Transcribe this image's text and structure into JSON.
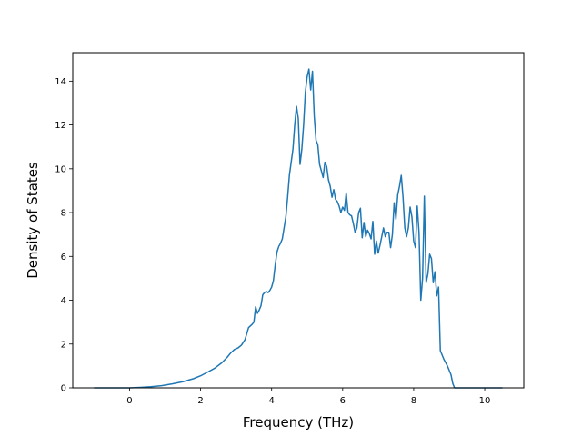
{
  "chart_data": {
    "type": "line",
    "xlabel": "Frequency (THz)",
    "ylabel": "Density of States",
    "xlim": [
      -1.6,
      11.1
    ],
    "ylim": [
      0,
      15.3
    ],
    "xticks": [
      0,
      2,
      4,
      6,
      8,
      10
    ],
    "yticks": [
      0,
      2,
      4,
      6,
      8,
      10,
      12,
      14
    ],
    "grid": false,
    "series": [
      {
        "color": "#1f77b4",
        "points": [
          [
            -1.0,
            0.0
          ],
          [
            -0.5,
            0.0
          ],
          [
            0.0,
            0.0
          ],
          [
            0.3,
            0.02
          ],
          [
            0.6,
            0.05
          ],
          [
            0.9,
            0.1
          ],
          [
            1.2,
            0.18
          ],
          [
            1.5,
            0.28
          ],
          [
            1.8,
            0.42
          ],
          [
            2.0,
            0.55
          ],
          [
            2.2,
            0.72
          ],
          [
            2.4,
            0.9
          ],
          [
            2.6,
            1.15
          ],
          [
            2.75,
            1.4
          ],
          [
            2.85,
            1.6
          ],
          [
            2.95,
            1.75
          ],
          [
            3.05,
            1.82
          ],
          [
            3.15,
            1.95
          ],
          [
            3.25,
            2.2
          ],
          [
            3.35,
            2.75
          ],
          [
            3.45,
            2.9
          ],
          [
            3.5,
            3.0
          ],
          [
            3.55,
            3.7
          ],
          [
            3.6,
            3.4
          ],
          [
            3.65,
            3.55
          ],
          [
            3.7,
            3.75
          ],
          [
            3.75,
            4.25
          ],
          [
            3.8,
            4.35
          ],
          [
            3.85,
            4.4
          ],
          [
            3.9,
            4.35
          ],
          [
            3.95,
            4.45
          ],
          [
            4.0,
            4.6
          ],
          [
            4.05,
            4.9
          ],
          [
            4.1,
            5.6
          ],
          [
            4.15,
            6.2
          ],
          [
            4.2,
            6.45
          ],
          [
            4.25,
            6.6
          ],
          [
            4.3,
            6.8
          ],
          [
            4.35,
            7.3
          ],
          [
            4.4,
            7.8
          ],
          [
            4.45,
            8.7
          ],
          [
            4.5,
            9.7
          ],
          [
            4.55,
            10.3
          ],
          [
            4.6,
            10.9
          ],
          [
            4.65,
            12.0
          ],
          [
            4.7,
            12.85
          ],
          [
            4.75,
            12.3
          ],
          [
            4.8,
            10.2
          ],
          [
            4.85,
            10.9
          ],
          [
            4.9,
            12.0
          ],
          [
            4.95,
            13.5
          ],
          [
            5.0,
            14.2
          ],
          [
            5.05,
            14.55
          ],
          [
            5.1,
            13.6
          ],
          [
            5.15,
            14.45
          ],
          [
            5.2,
            12.4
          ],
          [
            5.25,
            11.3
          ],
          [
            5.3,
            11.1
          ],
          [
            5.35,
            10.2
          ],
          [
            5.4,
            9.9
          ],
          [
            5.45,
            9.6
          ],
          [
            5.5,
            10.3
          ],
          [
            5.55,
            10.1
          ],
          [
            5.6,
            9.5
          ],
          [
            5.65,
            9.2
          ],
          [
            5.7,
            8.7
          ],
          [
            5.75,
            9.05
          ],
          [
            5.8,
            8.6
          ],
          [
            5.85,
            8.5
          ],
          [
            5.9,
            8.3
          ],
          [
            5.95,
            8.0
          ],
          [
            6.0,
            8.25
          ],
          [
            6.05,
            8.1
          ],
          [
            6.1,
            8.9
          ],
          [
            6.15,
            8.0
          ],
          [
            6.2,
            7.9
          ],
          [
            6.25,
            7.85
          ],
          [
            6.3,
            7.5
          ],
          [
            6.35,
            7.1
          ],
          [
            6.4,
            7.3
          ],
          [
            6.45,
            8.0
          ],
          [
            6.5,
            8.2
          ],
          [
            6.55,
            6.85
          ],
          [
            6.6,
            7.55
          ],
          [
            6.65,
            6.9
          ],
          [
            6.7,
            7.2
          ],
          [
            6.75,
            7.05
          ],
          [
            6.8,
            6.8
          ],
          [
            6.85,
            7.6
          ],
          [
            6.9,
            6.1
          ],
          [
            6.95,
            6.7
          ],
          [
            7.0,
            6.15
          ],
          [
            7.05,
            6.5
          ],
          [
            7.1,
            6.9
          ],
          [
            7.15,
            7.3
          ],
          [
            7.2,
            6.9
          ],
          [
            7.25,
            7.1
          ],
          [
            7.3,
            7.1
          ],
          [
            7.35,
            6.4
          ],
          [
            7.4,
            7.0
          ],
          [
            7.45,
            8.45
          ],
          [
            7.5,
            7.7
          ],
          [
            7.55,
            8.8
          ],
          [
            7.6,
            9.2
          ],
          [
            7.65,
            9.7
          ],
          [
            7.7,
            8.7
          ],
          [
            7.75,
            7.3
          ],
          [
            7.8,
            6.9
          ],
          [
            7.85,
            7.3
          ],
          [
            7.9,
            8.25
          ],
          [
            7.95,
            7.8
          ],
          [
            8.0,
            6.7
          ],
          [
            8.05,
            6.4
          ],
          [
            8.1,
            8.3
          ],
          [
            8.15,
            7.1
          ],
          [
            8.2,
            4.0
          ],
          [
            8.25,
            5.0
          ],
          [
            8.3,
            8.75
          ],
          [
            8.35,
            4.8
          ],
          [
            8.4,
            5.2
          ],
          [
            8.45,
            6.1
          ],
          [
            8.5,
            5.9
          ],
          [
            8.55,
            4.8
          ],
          [
            8.6,
            5.3
          ],
          [
            8.65,
            4.2
          ],
          [
            8.7,
            4.6
          ],
          [
            8.75,
            1.7
          ],
          [
            8.85,
            1.3
          ],
          [
            8.95,
            1.0
          ],
          [
            9.05,
            0.6
          ],
          [
            9.1,
            0.2
          ],
          [
            9.15,
            0.0
          ],
          [
            9.5,
            0.0
          ],
          [
            10.0,
            0.0
          ],
          [
            10.5,
            0.0
          ]
        ]
      }
    ]
  }
}
